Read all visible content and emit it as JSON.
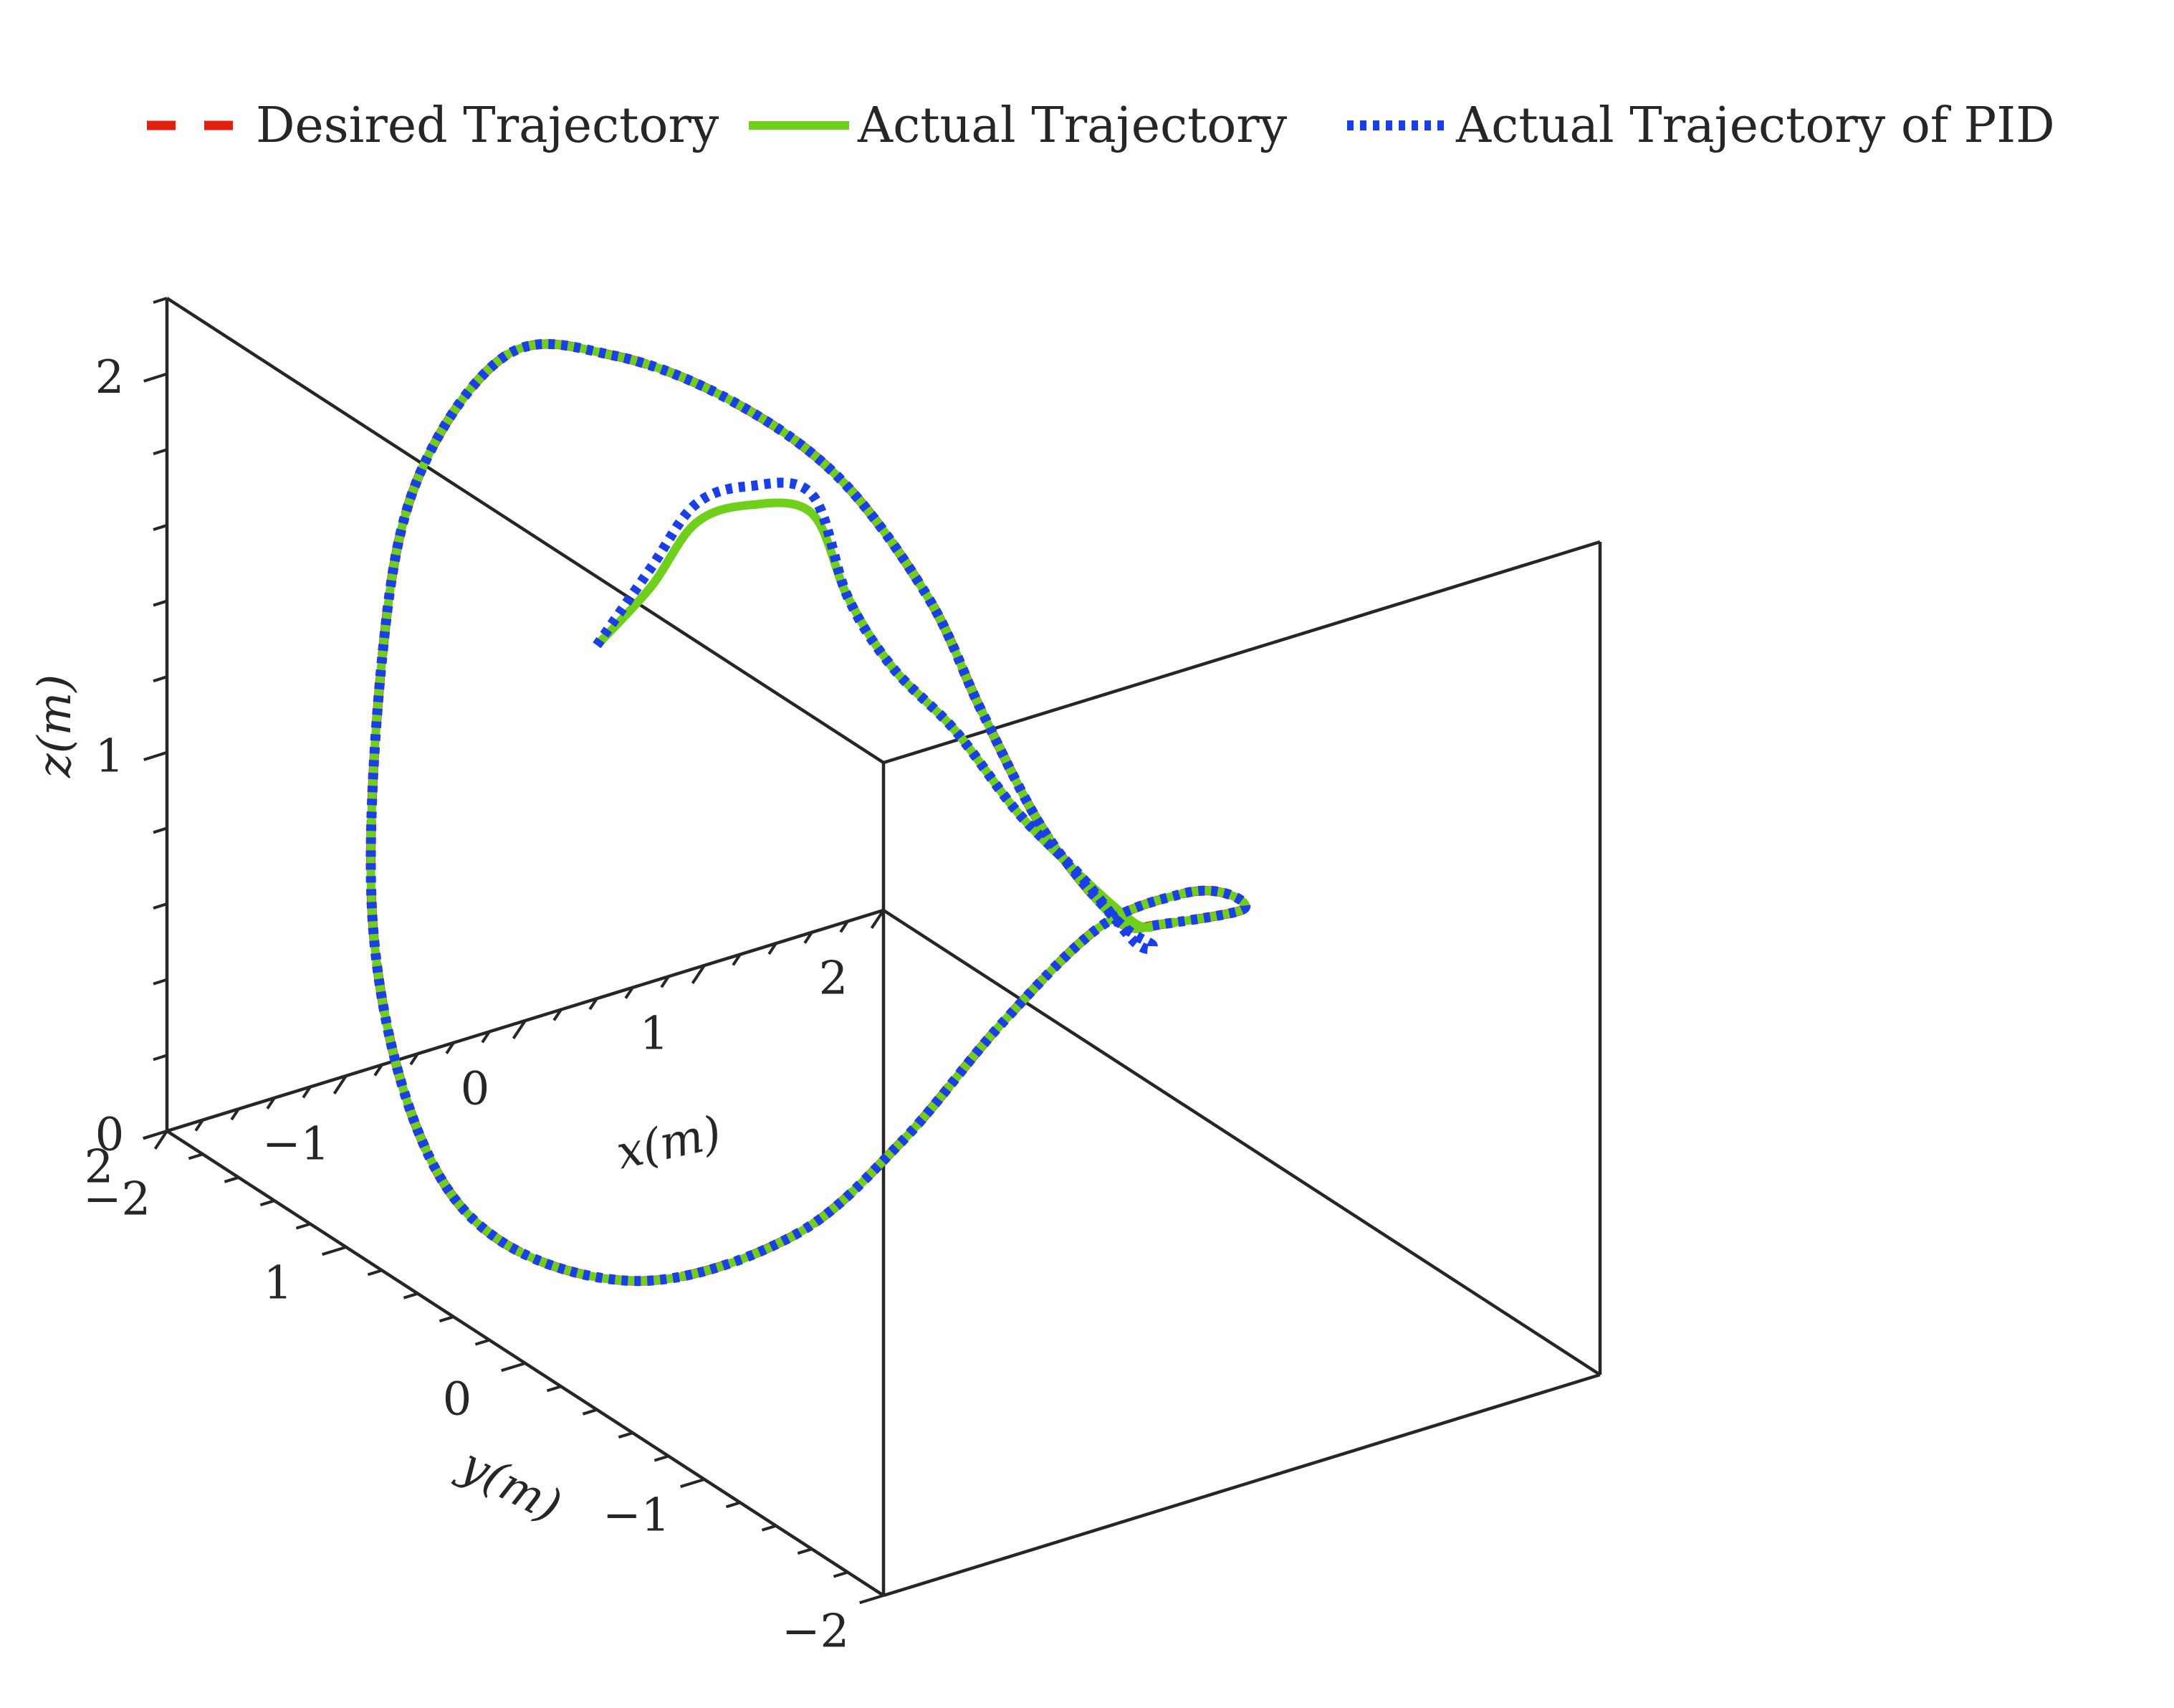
{
  "chart_data": {
    "type": "line3d",
    "legend_position": "top",
    "axes": {
      "x": {
        "label": "x(m)",
        "range": [
          -2,
          2
        ],
        "ticks": [
          -2,
          -1,
          0,
          1,
          2
        ],
        "tick_labels": [
          "−2",
          "−1",
          "0",
          "1",
          "2"
        ],
        "minor_step": 0.2
      },
      "y": {
        "label": "y(m)",
        "range": [
          -2,
          2
        ],
        "ticks": [
          -2,
          -1,
          0,
          1,
          2
        ],
        "tick_labels": [
          "−2",
          "−1",
          "0",
          "1",
          "2"
        ],
        "minor_step": 0.2
      },
      "z": {
        "label": "z(m)",
        "range": [
          0,
          2.2
        ],
        "ticks": [
          0,
          1,
          2
        ],
        "tick_labels": [
          "0",
          "1",
          "2"
        ],
        "minor_step": 0.2
      }
    },
    "series": [
      {
        "name": "Desired Trajectory",
        "color": "#e0200f",
        "style": "dashed",
        "points": [
          [
            1.6,
            0.1,
            0.6
          ],
          [
            1.5,
            0.2,
            0.6
          ],
          [
            1.3,
            0.4,
            0.8
          ],
          [
            1.1,
            0.55,
            1.1
          ],
          [
            0.9,
            0.65,
            1.4
          ],
          [
            0.6,
            0.85,
            1.7
          ],
          [
            0.2,
            1.05,
            1.9
          ],
          [
            -0.2,
            1.3,
            2.0
          ],
          [
            -0.6,
            1.5,
            2.0
          ],
          [
            -1.0,
            1.6,
            1.7
          ],
          [
            -1.2,
            1.6,
            1.25
          ],
          [
            -1.35,
            1.5,
            0.6
          ],
          [
            -1.6,
            1.0,
            0.25
          ],
          [
            -1.6,
            0.55,
            0.1
          ],
          [
            -1.3,
            0.05,
            0.1
          ],
          [
            -0.9,
            -0.4,
            0.3
          ],
          [
            -0.5,
            -0.6,
            0.55
          ],
          [
            0.0,
            -0.65,
            0.8
          ],
          [
            0.5,
            -0.7,
            1.0
          ],
          [
            1.0,
            -0.65,
            1.0
          ],
          [
            1.4,
            -0.5,
            0.9
          ],
          [
            1.7,
            -0.3,
            0.75
          ],
          [
            1.6,
            0.1,
            0.6
          ]
        ]
      },
      {
        "name": "Actual Trajectory",
        "color": "#6fcf1b",
        "style": "solid",
        "points": [
          [
            -0.3,
            1.3,
            1.25
          ],
          [
            -0.2,
            1.1,
            1.45
          ],
          [
            -0.1,
            0.95,
            1.65
          ],
          [
            0.1,
            0.85,
            1.7
          ],
          [
            0.4,
            0.8,
            1.65
          ],
          [
            0.6,
            0.8,
            1.4
          ],
          [
            0.8,
            0.75,
            1.2
          ],
          [
            1.0,
            0.6,
            1.05
          ],
          [
            1.2,
            0.45,
            0.85
          ],
          [
            1.4,
            0.3,
            0.7
          ],
          [
            1.55,
            0.15,
            0.6
          ],
          [
            1.6,
            0.1,
            0.6
          ],
          [
            1.5,
            0.2,
            0.6
          ],
          [
            1.3,
            0.4,
            0.8
          ],
          [
            1.1,
            0.55,
            1.1
          ],
          [
            0.9,
            0.65,
            1.4
          ],
          [
            0.6,
            0.85,
            1.7
          ],
          [
            0.2,
            1.05,
            1.9
          ],
          [
            -0.2,
            1.3,
            2.0
          ],
          [
            -0.6,
            1.5,
            2.0
          ],
          [
            -1.0,
            1.6,
            1.7
          ],
          [
            -1.2,
            1.6,
            1.25
          ],
          [
            -1.35,
            1.5,
            0.6
          ],
          [
            -1.6,
            1.0,
            0.25
          ],
          [
            -1.6,
            0.55,
            0.1
          ],
          [
            -1.3,
            0.05,
            0.1
          ],
          [
            -0.9,
            -0.4,
            0.3
          ],
          [
            -0.5,
            -0.6,
            0.55
          ],
          [
            0.0,
            -0.65,
            0.8
          ],
          [
            0.5,
            -0.7,
            1.0
          ],
          [
            1.0,
            -0.65,
            1.0
          ],
          [
            1.4,
            -0.5,
            0.9
          ],
          [
            1.7,
            -0.3,
            0.75
          ],
          [
            1.6,
            0.1,
            0.6
          ]
        ]
      },
      {
        "name": "Actual Trajectory of PID",
        "color": "#1a3fe6",
        "style": "dotted",
        "points": [
          [
            -0.3,
            1.3,
            1.25
          ],
          [
            -0.2,
            1.1,
            1.5
          ],
          [
            -0.1,
            0.95,
            1.7
          ],
          [
            0.1,
            0.85,
            1.75
          ],
          [
            0.4,
            0.8,
            1.7
          ],
          [
            0.6,
            0.8,
            1.4
          ],
          [
            0.8,
            0.75,
            1.2
          ],
          [
            1.0,
            0.6,
            1.05
          ],
          [
            1.2,
            0.45,
            0.85
          ],
          [
            1.4,
            0.3,
            0.7
          ],
          [
            1.55,
            0.15,
            0.55
          ],
          [
            1.6,
            0.1,
            0.55
          ],
          [
            1.5,
            0.2,
            0.6
          ],
          [
            1.3,
            0.4,
            0.8
          ],
          [
            1.1,
            0.55,
            1.1
          ],
          [
            0.9,
            0.65,
            1.4
          ],
          [
            0.6,
            0.85,
            1.7
          ],
          [
            0.2,
            1.05,
            1.9
          ],
          [
            -0.2,
            1.3,
            2.0
          ],
          [
            -0.6,
            1.5,
            2.0
          ],
          [
            -1.0,
            1.6,
            1.7
          ],
          [
            -1.2,
            1.6,
            1.25
          ],
          [
            -1.35,
            1.5,
            0.6
          ],
          [
            -1.6,
            1.0,
            0.25
          ],
          [
            -1.6,
            0.55,
            0.1
          ],
          [
            -1.3,
            0.05,
            0.1
          ],
          [
            -0.9,
            -0.4,
            0.3
          ],
          [
            -0.5,
            -0.6,
            0.55
          ],
          [
            0.0,
            -0.65,
            0.8
          ],
          [
            0.5,
            -0.7,
            1.0
          ],
          [
            1.0,
            -0.65,
            1.0
          ],
          [
            1.4,
            -0.5,
            0.9
          ],
          [
            1.7,
            -0.3,
            0.75
          ],
          [
            1.6,
            0.1,
            0.6
          ]
        ]
      }
    ]
  }
}
